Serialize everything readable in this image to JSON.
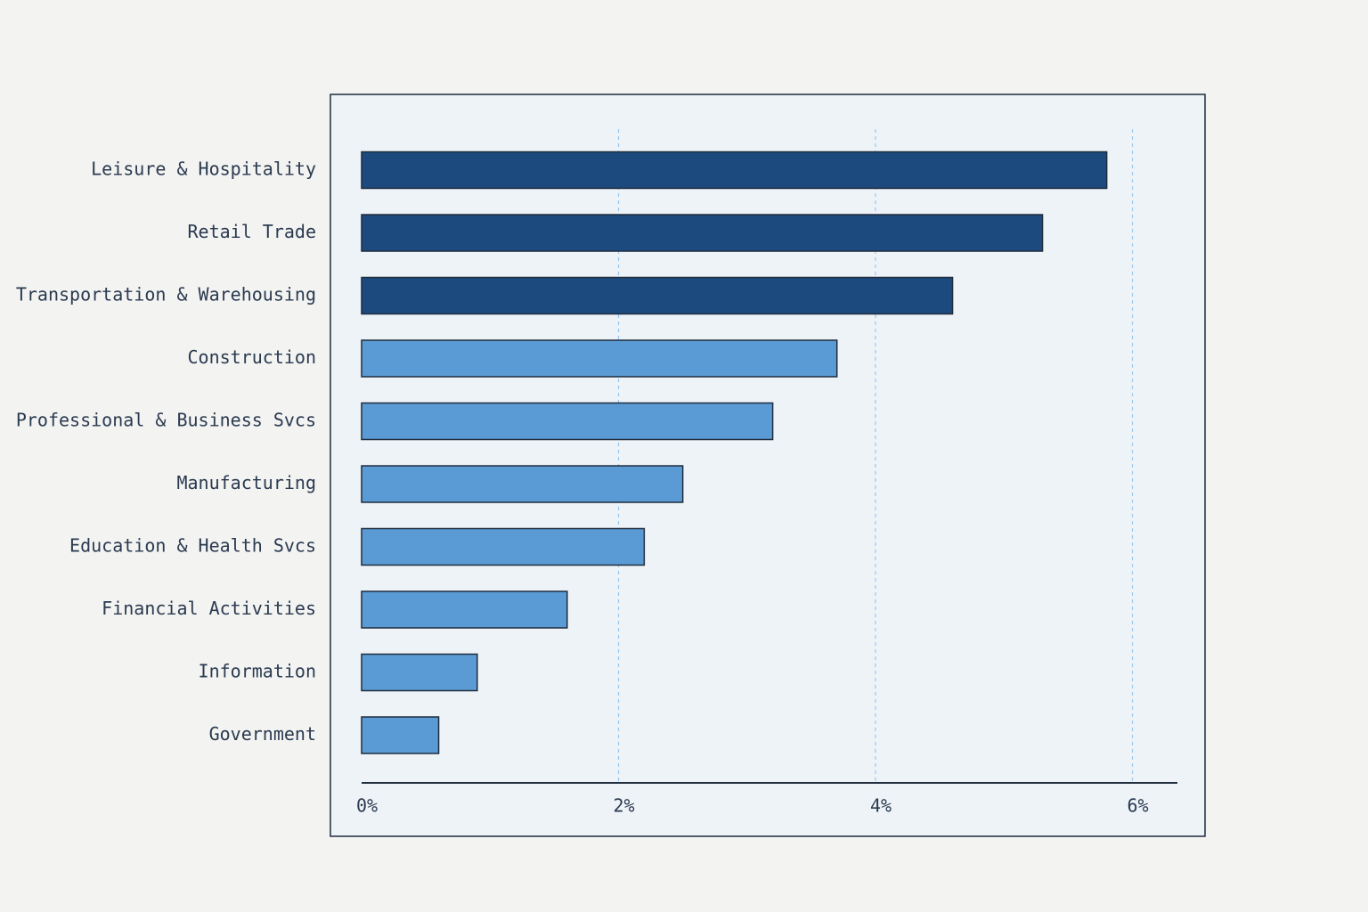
{
  "chart_data": {
    "type": "bar",
    "orientation": "horizontal",
    "categories": [
      "Leisure & Hospitality",
      "Retail Trade",
      "Transportation & Warehousing",
      "Construction",
      "Professional & Business Svcs",
      "Manufacturing",
      "Education & Health Svcs",
      "Financial Activities",
      "Information",
      "Government"
    ],
    "values": [
      5.8,
      5.3,
      4.6,
      3.7,
      3.2,
      2.5,
      2.2,
      1.6,
      0.9,
      0.6
    ],
    "colors": [
      "#1c4a7e",
      "#1c4a7e",
      "#1c4a7e",
      "#5b9bd5",
      "#5b9bd5",
      "#5b9bd5",
      "#5b9bd5",
      "#5b9bd5",
      "#5b9bd5",
      "#5b9bd5"
    ],
    "xlim": [
      0,
      6.35
    ],
    "xticks": [
      {
        "value": 0,
        "label": "0%"
      },
      {
        "value": 2,
        "label": "2%"
      },
      {
        "value": 4,
        "label": "4%"
      },
      {
        "value": 6,
        "label": "6%"
      }
    ],
    "grid": true
  }
}
